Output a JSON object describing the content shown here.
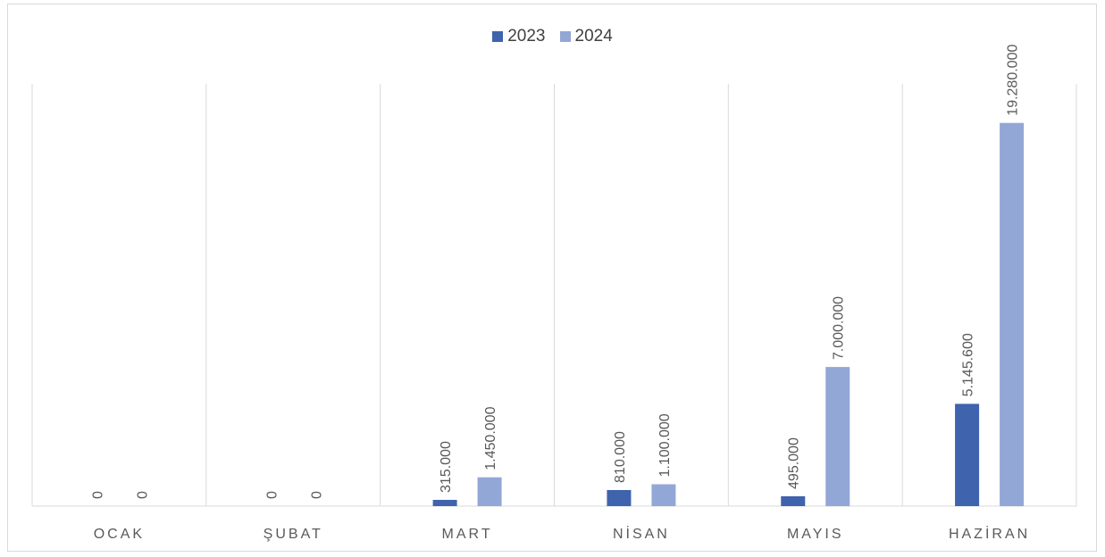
{
  "chart_data": {
    "type": "bar",
    "categories": [
      "OCAK",
      "ŞUBAT",
      "MART",
      "NİSAN",
      "MAYIS",
      "HAZİRAN"
    ],
    "series": [
      {
        "name": "2023",
        "values": [
          0,
          0,
          315000,
          810000,
          495000,
          5145600
        ],
        "labels": [
          "0",
          "0",
          "315.000",
          "810.000",
          "495.000",
          "5.145.600"
        ],
        "color": "#3f63ad"
      },
      {
        "name": "2024",
        "values": [
          0,
          0,
          1450000,
          1100000,
          7000000,
          19280000
        ],
        "labels": [
          "0",
          "0",
          "1.450.000",
          "1.100.000",
          "7.000.000",
          "19.280.000"
        ],
        "color": "#93a7d6"
      }
    ],
    "ylim": [
      0,
      22500000
    ],
    "grid": "vertical-separators",
    "legend_position": "top-center"
  }
}
